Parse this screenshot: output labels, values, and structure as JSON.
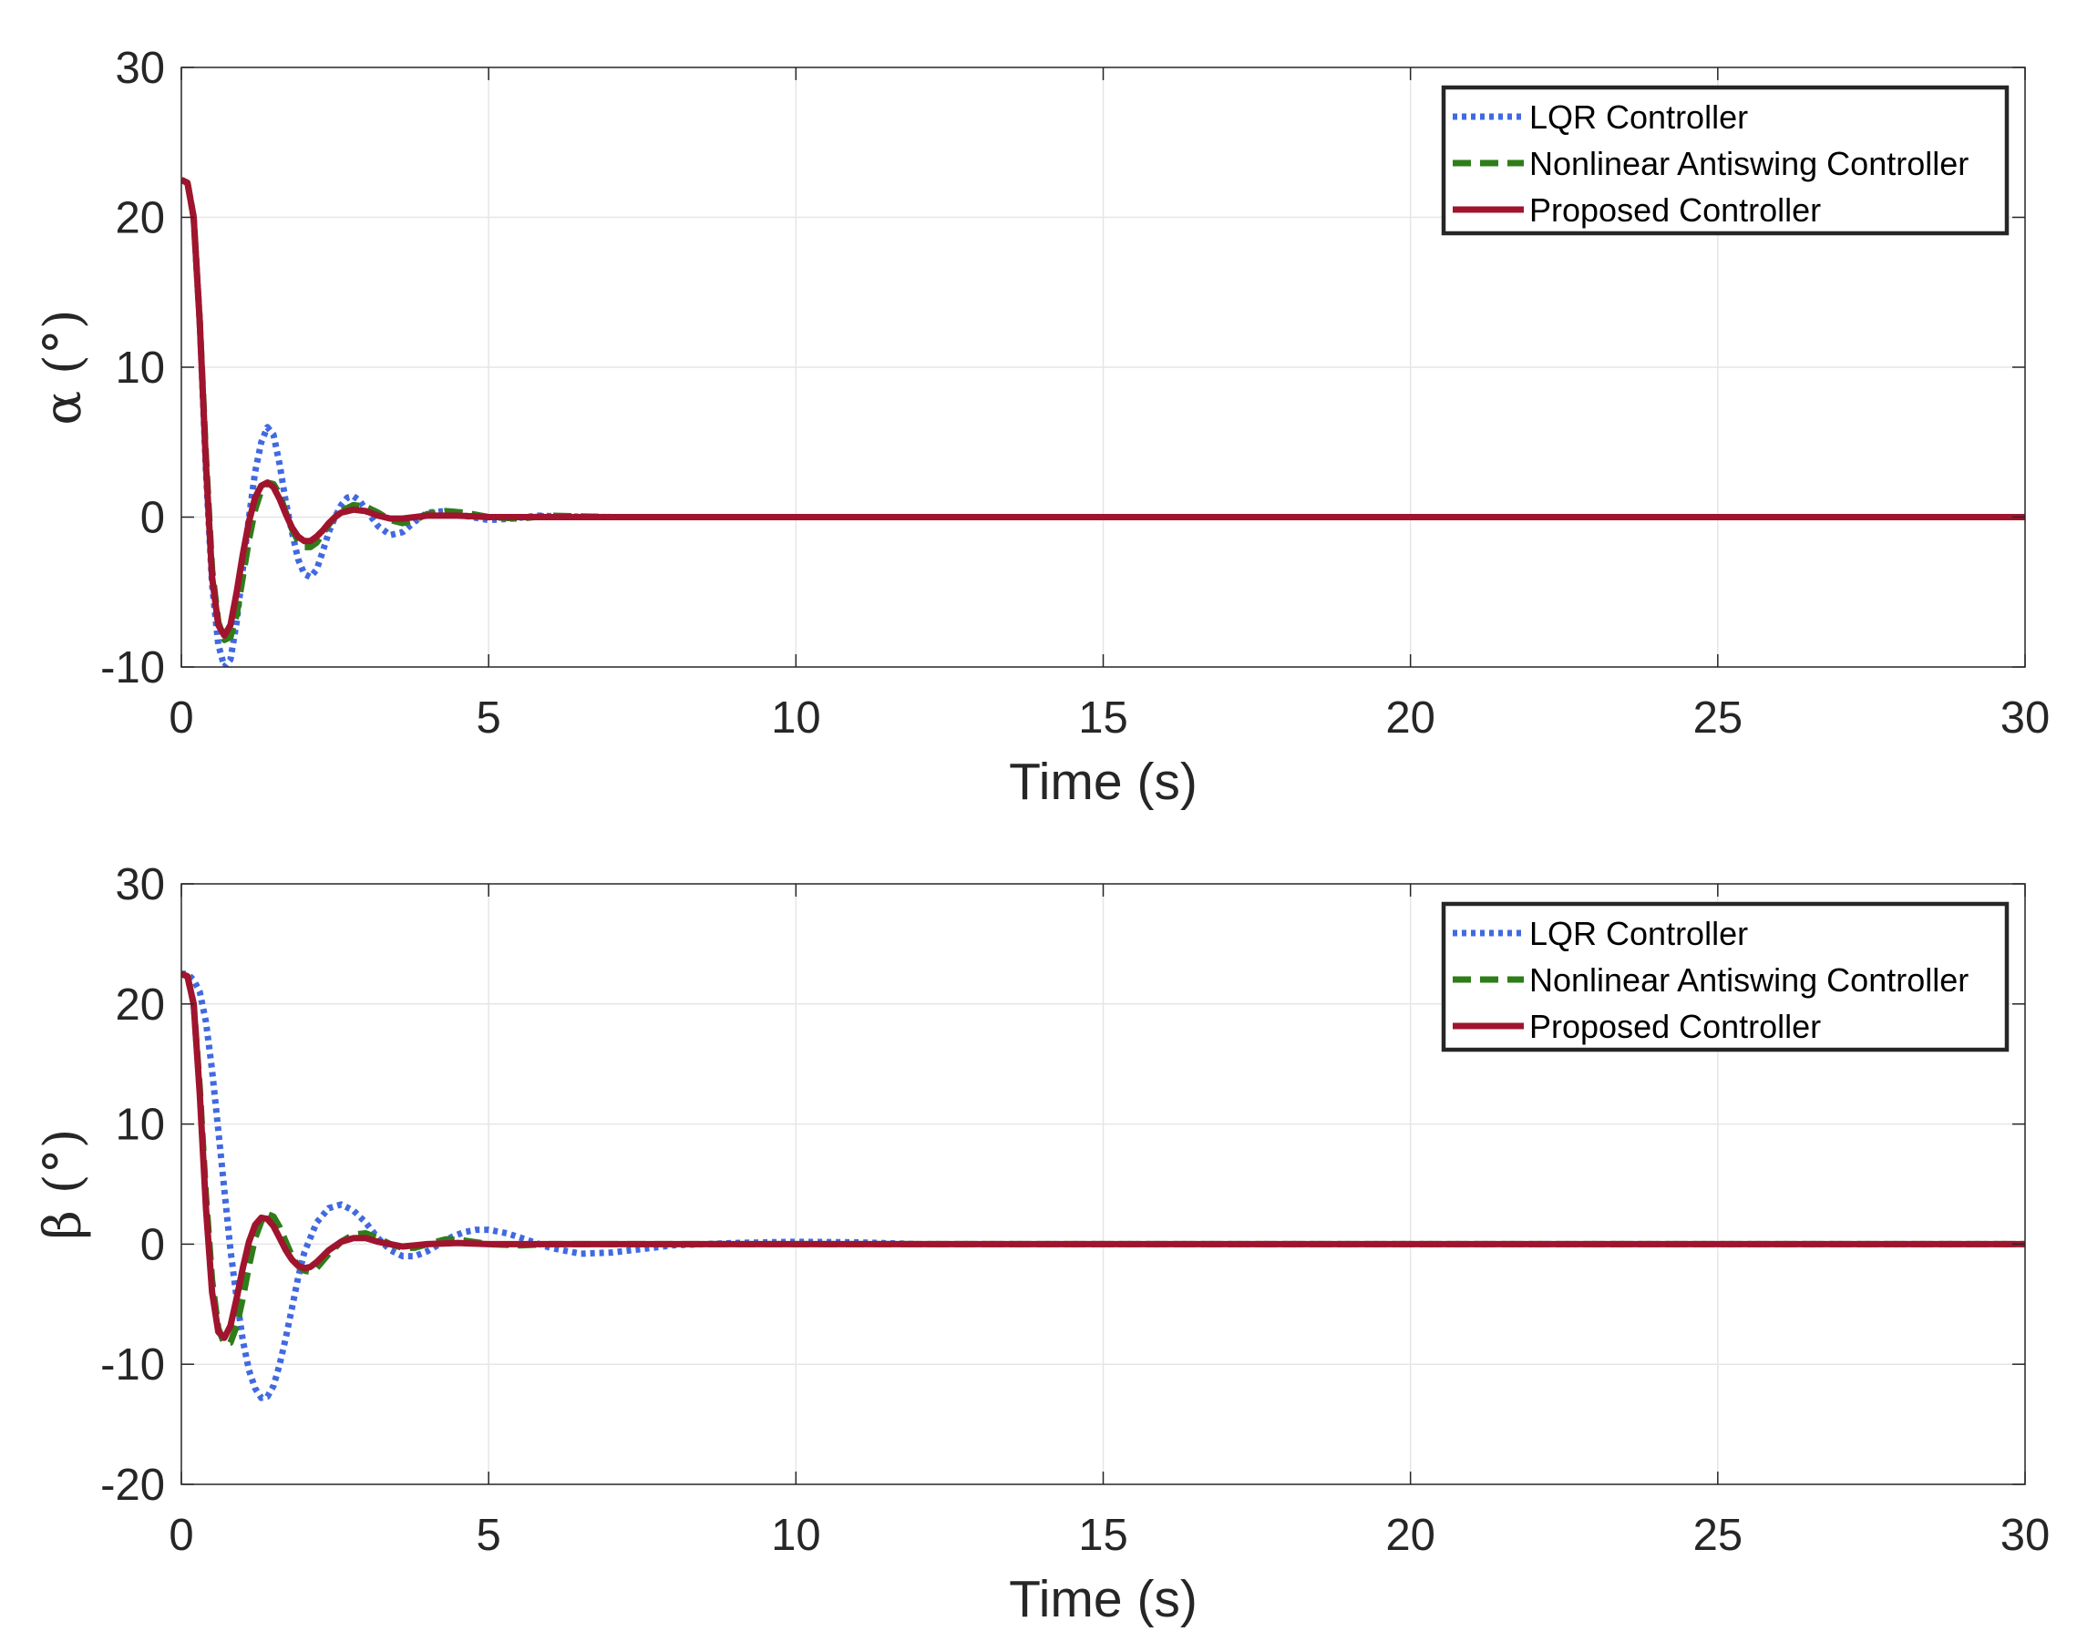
{
  "chart_data": [
    {
      "type": "line",
      "xlabel": "Time (s)",
      "ylabel": "α (°)",
      "xlim": [
        0,
        30
      ],
      "ylim": [
        -10,
        30
      ],
      "xticks": [
        0,
        5,
        10,
        15,
        20,
        25,
        30
      ],
      "yticks": [
        -10,
        0,
        10,
        20,
        30
      ],
      "grid": true,
      "legend_position": "top-right",
      "series": [
        {
          "name": "LQR Controller",
          "color": "#4169E1",
          "style": "dotted",
          "x": [
            0,
            0.1,
            0.2,
            0.3,
            0.4,
            0.5,
            0.6,
            0.7,
            0.8,
            0.9,
            1.0,
            1.1,
            1.2,
            1.3,
            1.4,
            1.5,
            1.6,
            1.7,
            1.8,
            1.9,
            2.0,
            2.1,
            2.2,
            2.3,
            2.4,
            2.5,
            2.6,
            2.7,
            2.8,
            2.9,
            3.0,
            3.2,
            3.4,
            3.6,
            3.8,
            4.0,
            4.3,
            4.6,
            5.0,
            5.4,
            5.8,
            6.2,
            7.0,
            8.0,
            10.0,
            15.0,
            20.0,
            25.0,
            30.0
          ],
          "y": [
            22.5,
            22.3,
            20.0,
            13.0,
            3.0,
            -4.5,
            -8.5,
            -10.0,
            -9.5,
            -7.0,
            -3.5,
            0.0,
            3.0,
            5.0,
            6.0,
            5.5,
            3.5,
            1.0,
            -1.0,
            -2.8,
            -3.8,
            -4.0,
            -3.5,
            -2.3,
            -1.0,
            0.0,
            0.8,
            1.3,
            1.4,
            1.1,
            0.5,
            -0.6,
            -1.2,
            -1.0,
            -0.3,
            0.3,
            0.4,
            0.1,
            -0.2,
            -0.1,
            0.1,
            0.05,
            0.0,
            0.0,
            0.0,
            0.0,
            0.0,
            0.0,
            0.0
          ]
        },
        {
          "name": "Nonlinear Antiswing Controller",
          "color": "#2E7D1A",
          "style": "dashed",
          "x": [
            0,
            0.1,
            0.2,
            0.3,
            0.4,
            0.5,
            0.6,
            0.7,
            0.8,
            0.9,
            1.0,
            1.1,
            1.2,
            1.3,
            1.4,
            1.5,
            1.6,
            1.7,
            1.8,
            1.9,
            2.0,
            2.1,
            2.2,
            2.3,
            2.4,
            2.5,
            2.6,
            2.8,
            3.0,
            3.2,
            3.4,
            3.6,
            3.8,
            4.0,
            4.3,
            4.6,
            5.0,
            5.5,
            6.0,
            7.0,
            8.0,
            10.0,
            15.0,
            20.0,
            25.0,
            30.0
          ],
          "y": [
            22.5,
            22.3,
            20.0,
            13.0,
            4.0,
            -3.5,
            -7.0,
            -8.2,
            -8.0,
            -6.5,
            -4.0,
            -1.5,
            0.5,
            1.8,
            2.3,
            2.2,
            1.5,
            0.3,
            -0.8,
            -1.6,
            -2.0,
            -2.0,
            -1.7,
            -1.1,
            -0.5,
            0.0,
            0.4,
            0.8,
            0.7,
            0.3,
            -0.2,
            -0.4,
            -0.2,
            0.2,
            0.4,
            0.3,
            0.0,
            -0.1,
            0.1,
            0.0,
            0.0,
            0.0,
            0.0,
            0.0,
            0.0,
            0.0
          ]
        },
        {
          "name": "Proposed Controller",
          "color": "#A0142E",
          "style": "solid",
          "x": [
            0,
            0.1,
            0.2,
            0.3,
            0.4,
            0.5,
            0.6,
            0.7,
            0.8,
            0.9,
            1.0,
            1.1,
            1.2,
            1.3,
            1.4,
            1.5,
            1.6,
            1.7,
            1.8,
            1.9,
            2.0,
            2.1,
            2.2,
            2.3,
            2.4,
            2.5,
            2.6,
            2.8,
            3.0,
            3.2,
            3.4,
            3.6,
            3.8,
            4.0,
            4.5,
            5.0,
            6.0,
            7.0,
            10.0,
            15.0,
            20.0,
            25.0,
            30.0
          ],
          "y": [
            22.5,
            22.3,
            20.0,
            13.0,
            3.5,
            -4.0,
            -7.2,
            -7.9,
            -7.2,
            -5.0,
            -2.5,
            -0.3,
            1.3,
            2.1,
            2.3,
            2.0,
            1.2,
            0.2,
            -0.7,
            -1.3,
            -1.6,
            -1.6,
            -1.3,
            -0.9,
            -0.4,
            0.0,
            0.3,
            0.5,
            0.4,
            0.1,
            -0.1,
            -0.1,
            0.0,
            0.1,
            0.1,
            0.0,
            0.0,
            0.0,
            0.0,
            0.0,
            0.0,
            0.0,
            0.0
          ]
        }
      ]
    },
    {
      "type": "line",
      "xlabel": "Time (s)",
      "ylabel": "β (°)",
      "xlim": [
        0,
        30
      ],
      "ylim": [
        -20,
        30
      ],
      "xticks": [
        0,
        5,
        10,
        15,
        20,
        25,
        30
      ],
      "yticks": [
        -20,
        -10,
        0,
        10,
        20,
        30
      ],
      "grid": true,
      "legend_position": "top-right",
      "series": [
        {
          "name": "LQR Controller",
          "color": "#4169E1",
          "style": "dotted",
          "x": [
            0,
            0.1,
            0.2,
            0.3,
            0.4,
            0.5,
            0.6,
            0.7,
            0.8,
            0.9,
            1.0,
            1.1,
            1.2,
            1.3,
            1.4,
            1.5,
            1.6,
            1.7,
            1.8,
            1.9,
            2.0,
            2.2,
            2.4,
            2.6,
            2.8,
            3.0,
            3.2,
            3.4,
            3.6,
            3.8,
            4.0,
            4.2,
            4.4,
            4.6,
            4.8,
            5.0,
            5.3,
            5.6,
            6.0,
            6.5,
            7.0,
            7.5,
            8.0,
            9.0,
            10.0,
            11.0,
            12.0,
            15.0,
            20.0,
            25.0,
            30.0
          ],
          "y": [
            22.5,
            22.5,
            22.0,
            21.0,
            18.5,
            14.5,
            9.5,
            4.5,
            -0.5,
            -4.5,
            -8.0,
            -10.5,
            -12.0,
            -12.8,
            -12.7,
            -11.8,
            -10.0,
            -7.8,
            -5.3,
            -2.8,
            -0.7,
            1.8,
            3.0,
            3.3,
            2.8,
            1.8,
            0.5,
            -0.5,
            -1.0,
            -1.0,
            -0.6,
            0.0,
            0.6,
            1.0,
            1.2,
            1.2,
            0.9,
            0.4,
            -0.3,
            -0.8,
            -0.7,
            -0.4,
            -0.1,
            0.1,
            0.2,
            0.15,
            0.0,
            0.0,
            0.0,
            0.0,
            0.0
          ]
        },
        {
          "name": "Nonlinear Antiswing Controller",
          "color": "#2E7D1A",
          "style": "dashed",
          "x": [
            0,
            0.1,
            0.2,
            0.3,
            0.4,
            0.5,
            0.6,
            0.7,
            0.8,
            0.9,
            1.0,
            1.1,
            1.2,
            1.3,
            1.4,
            1.5,
            1.6,
            1.7,
            1.8,
            1.9,
            2.0,
            2.1,
            2.2,
            2.3,
            2.4,
            2.6,
            2.8,
            3.0,
            3.2,
            3.4,
            3.6,
            3.8,
            4.0,
            4.3,
            4.6,
            5.0,
            5.5,
            6.0,
            7.0,
            8.0,
            10.0,
            15.0,
            20.0,
            25.0,
            30.0
          ],
          "y": [
            22.5,
            22.3,
            20.0,
            13.0,
            4.0,
            -3.0,
            -7.0,
            -8.3,
            -8.2,
            -6.8,
            -4.5,
            -1.8,
            0.5,
            1.9,
            2.5,
            2.3,
            1.4,
            0.2,
            -1.0,
            -1.8,
            -2.2,
            -2.3,
            -2.0,
            -1.4,
            -0.8,
            0.2,
            0.8,
            0.9,
            0.5,
            0.0,
            -0.3,
            -0.3,
            0.0,
            0.4,
            0.3,
            0.0,
            -0.1,
            0.0,
            0.0,
            0.0,
            0.0,
            0.0,
            0.0,
            0.0,
            0.0
          ]
        },
        {
          "name": "Proposed Controller",
          "color": "#A0142E",
          "style": "solid",
          "x": [
            0,
            0.1,
            0.2,
            0.3,
            0.4,
            0.5,
            0.6,
            0.7,
            0.8,
            0.9,
            1.0,
            1.1,
            1.2,
            1.3,
            1.4,
            1.5,
            1.6,
            1.7,
            1.8,
            1.9,
            2.0,
            2.1,
            2.2,
            2.3,
            2.4,
            2.6,
            2.8,
            3.0,
            3.2,
            3.4,
            3.6,
            3.8,
            4.0,
            4.5,
            5.0,
            6.0,
            7.0,
            10.0,
            15.0,
            20.0,
            25.0,
            30.0
          ],
          "y": [
            22.5,
            22.3,
            20.0,
            12.5,
            3.0,
            -4.0,
            -7.3,
            -7.8,
            -6.8,
            -4.5,
            -2.0,
            0.2,
            1.6,
            2.2,
            2.1,
            1.5,
            0.5,
            -0.5,
            -1.3,
            -1.8,
            -2.0,
            -1.9,
            -1.5,
            -1.0,
            -0.5,
            0.2,
            0.5,
            0.5,
            0.2,
            0.0,
            -0.2,
            -0.1,
            0.0,
            0.1,
            0.0,
            0.0,
            0.0,
            0.0,
            0.0,
            0.0,
            0.0,
            0.0
          ]
        }
      ]
    }
  ]
}
